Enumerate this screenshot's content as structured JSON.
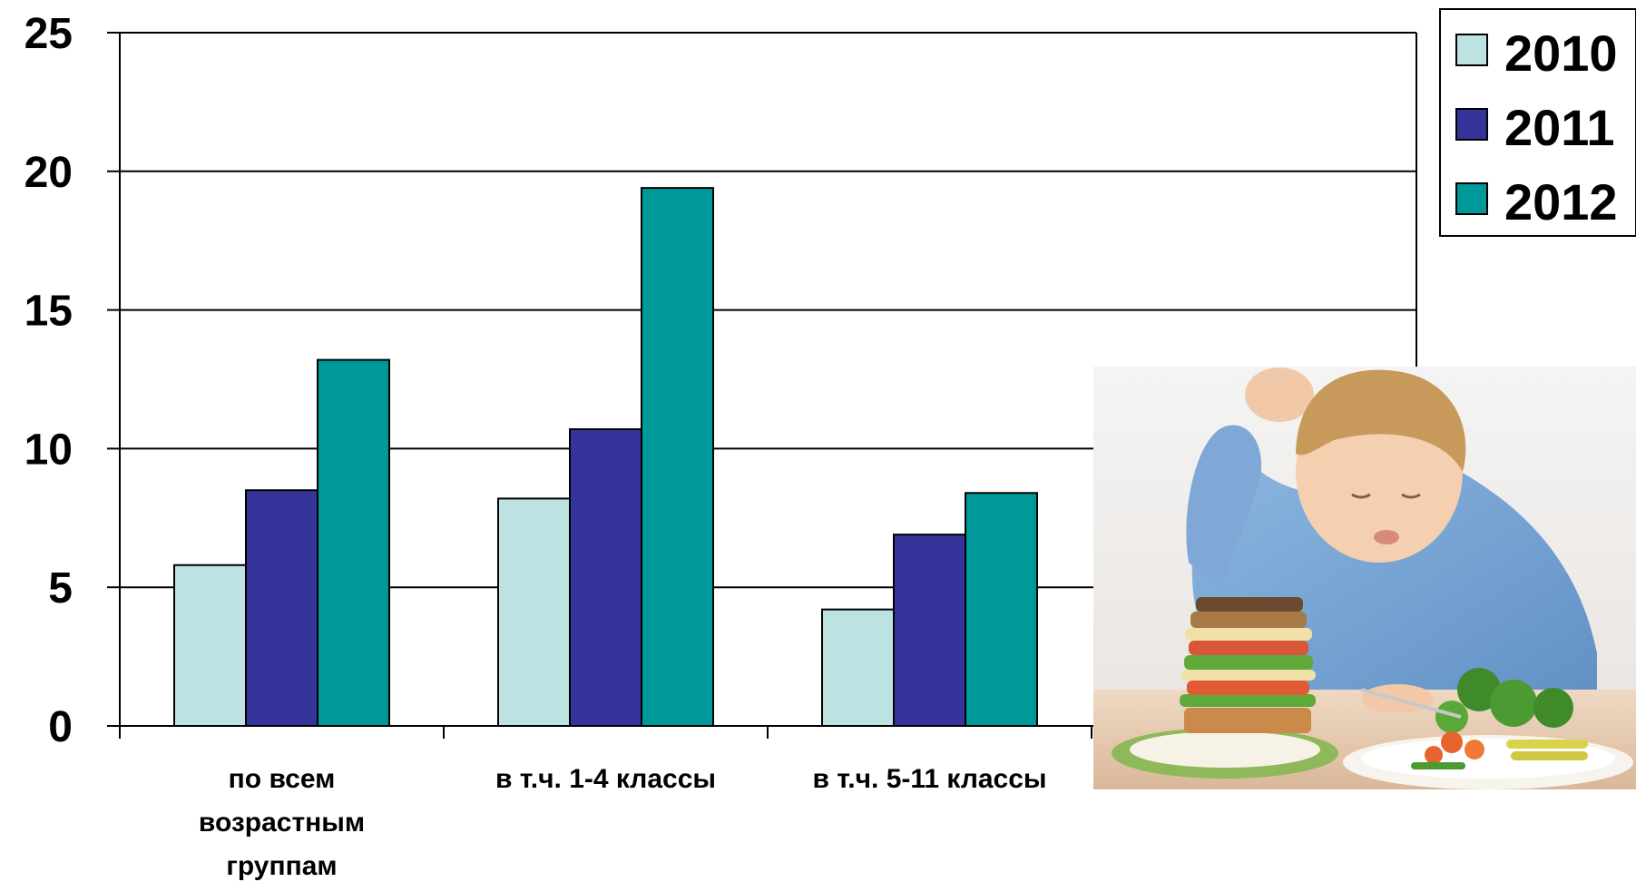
{
  "chart_data": {
    "type": "bar",
    "categories": [
      [
        "по всем",
        "возрастным",
        "группам"
      ],
      [
        "в т.ч. 1-4 классы"
      ],
      [
        "в т.ч. 5-11 классы"
      ]
    ],
    "series": [
      {
        "name": "2010",
        "color": "#BCE2E2",
        "values": [
          5.8,
          8.2,
          4.2
        ]
      },
      {
        "name": "2011",
        "color": "#35349A",
        "values": [
          8.5,
          10.7,
          6.9
        ]
      },
      {
        "name": "2012",
        "color": "#009999",
        "values": [
          13.2,
          19.4,
          8.4
        ]
      }
    ],
    "ylim": [
      0,
      25
    ],
    "yticks": [
      "0",
      "5",
      "10",
      "15",
      "20",
      "25"
    ],
    "grid": true,
    "legend": "top-right",
    "title": "",
    "xlabel": "",
    "ylabel": ""
  },
  "photo": {
    "icon": "child-with-sandwich-and-vegetables-photo"
  }
}
